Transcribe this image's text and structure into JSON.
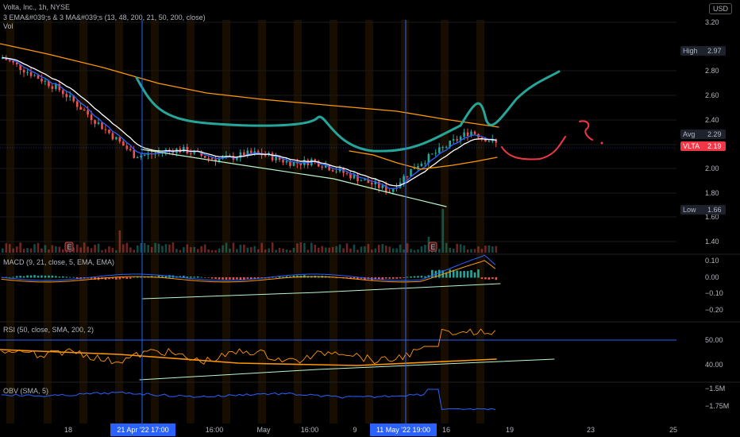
{
  "header": {
    "title": "Volta, Inc., 1h, NYSE",
    "indicator_line": "3 EMA&#039;s & 3 MA&#039;s (13, 48, 200, 21, 50, 200, close)",
    "vol_label": "Vol",
    "currency_button": "USD"
  },
  "price_pane": {
    "ticks": [
      "3.20",
      "2.80",
      "2.60",
      "2.40",
      "2.20",
      "2.00",
      "1.80",
      "1.60",
      "1.40"
    ],
    "tags": {
      "high": {
        "label": "High",
        "value": "2.97"
      },
      "avg": {
        "label": "Avg",
        "value": "2.29"
      },
      "symbol": {
        "label": "VLTA",
        "value": "2.19"
      },
      "low": {
        "label": "Low",
        "value": "1.66"
      }
    },
    "earnings_marker": "E"
  },
  "macd_pane": {
    "title": "MACD (9, 21, close, 5, EMA, EMA)",
    "ticks": [
      "0.10",
      "0.00",
      "−0.10",
      "−0.20"
    ]
  },
  "rsi_pane": {
    "title": "RSI (50, close, SMA, 200, 2)",
    "ticks": [
      "50.00",
      "40.00"
    ]
  },
  "obv_pane": {
    "title": "OBV (SMA, 5)",
    "ticks": [
      "−1.5M",
      "−1.75M"
    ]
  },
  "time_axis": {
    "labels": [
      "18",
      "21 Apr '22   17:00",
      "16:00",
      "May",
      "16:00",
      "9",
      "11 May '22   19:00",
      "16",
      "19",
      "23",
      "25"
    ]
  },
  "colors": {
    "up": "#26a69a",
    "down": "#ef5350",
    "ema_fast": "#2962ff",
    "ema_mid": "#ffffff",
    "ma_slow": "#ff9800",
    "drawing_teal": "#26a69a",
    "drawing_red": "#f23645",
    "trend_green": "#b9f6ca",
    "crosshair": "#2962ff"
  }
}
